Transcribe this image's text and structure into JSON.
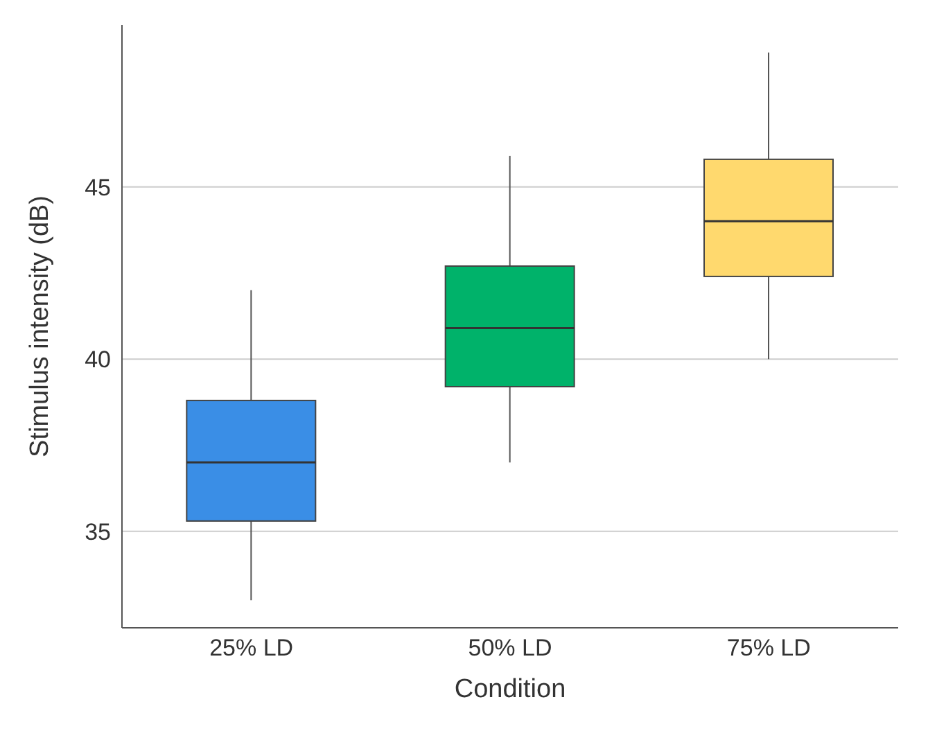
{
  "chart_data": {
    "type": "box",
    "xlabel": "Condition",
    "ylabel": "Stimulus intensity (dB)",
    "categories": [
      "25% LD",
      "50% LD",
      "75% LD"
    ],
    "boxes": [
      {
        "low": 33.0,
        "q1": 35.3,
        "median": 37.0,
        "q3": 38.8,
        "high": 42.0
      },
      {
        "low": 37.0,
        "q1": 39.2,
        "median": 40.9,
        "q3": 42.7,
        "high": 45.9
      },
      {
        "low": 40.0,
        "q1": 42.4,
        "median": 44.0,
        "q3": 45.8,
        "high": 48.9
      }
    ],
    "colors": [
      "#3a8ee6",
      "#00b26a",
      "#ffd96e"
    ],
    "ylim": [
      32.2,
      49.7
    ],
    "yticks": [
      35,
      40,
      45
    ],
    "grid": "y"
  }
}
